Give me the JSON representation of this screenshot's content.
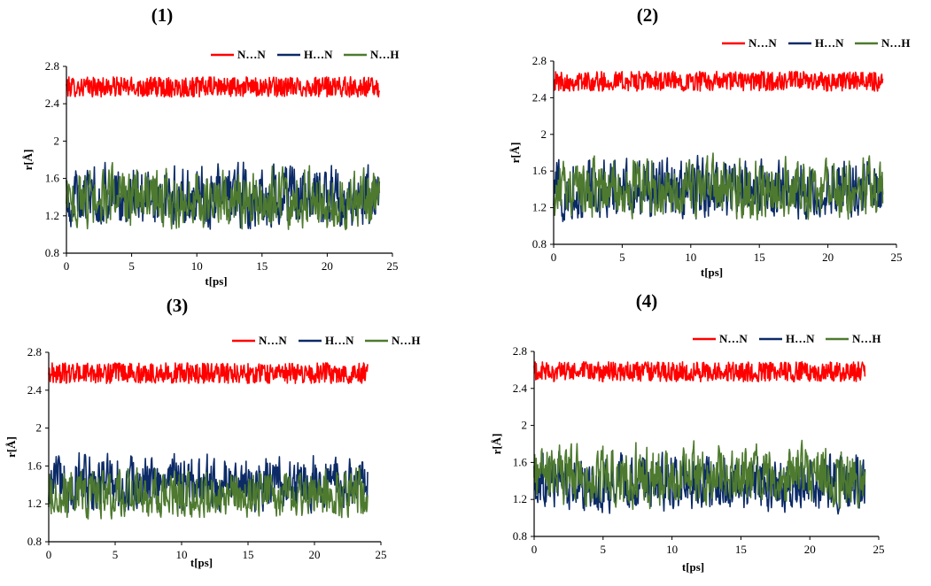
{
  "chart_data": [
    {
      "type": "line",
      "panel_label": "(1)",
      "xlabel": "t[ps]",
      "ylabel": "r[Å]",
      "xlim": [
        0,
        25
      ],
      "ylim": [
        0.8,
        2.8
      ],
      "xticks": [
        "0",
        "5",
        "10",
        "15",
        "20",
        "25"
      ],
      "yticks": [
        "0.8",
        "1.2",
        "1.6",
        "2",
        "2.4",
        "2.8"
      ],
      "legend": [
        "N…N",
        "H…N",
        "N…H"
      ],
      "x_end": 24,
      "series": [
        {
          "name": "N…N",
          "color": "#ff0000",
          "mean": 2.58,
          "amplitude": 0.12,
          "description_values": [
            2.45,
            2.78
          ]
        },
        {
          "name": "H…N",
          "color": "#0b2a66",
          "mean": 1.38,
          "amplitude": 0.36,
          "description_values": [
            1.0,
            1.85
          ]
        },
        {
          "name": "N…H",
          "color": "#4e7a2f",
          "mean": 1.3,
          "amplitude": 0.3,
          "description_values": [
            1.0,
            1.8
          ]
        }
      ]
    },
    {
      "type": "line",
      "panel_label": "(2)",
      "xlabel": "t[ps]",
      "ylabel": "r[Å]",
      "xlim": [
        0,
        25
      ],
      "ylim": [
        0.8,
        2.8
      ],
      "xticks": [
        "0",
        "5",
        "10",
        "15",
        "20",
        "25"
      ],
      "yticks": [
        "0.8",
        "1.2",
        "1.6",
        "2",
        "2.4",
        "2.8"
      ],
      "legend": [
        "N…N",
        "H…N",
        "N…H"
      ],
      "x_end": 24,
      "series": [
        {
          "name": "N…N",
          "color": "#ff0000",
          "mean": 2.58,
          "amplitude": 0.12,
          "description_values": [
            2.45,
            2.78
          ]
        },
        {
          "name": "H…N",
          "color": "#0b2a66",
          "mean": 1.35,
          "amplitude": 0.36,
          "description_values": [
            1.0,
            1.85
          ]
        },
        {
          "name": "N…H",
          "color": "#4e7a2f",
          "mean": 1.33,
          "amplitude": 0.32,
          "description_values": [
            1.0,
            1.85
          ]
        }
      ]
    },
    {
      "type": "line",
      "panel_label": "(3)",
      "xlabel": "t[ps]",
      "ylabel": "r[Å]",
      "xlim": [
        0,
        25
      ],
      "ylim": [
        0.8,
        2.8
      ],
      "xticks": [
        "0",
        "5",
        "10",
        "15",
        "20",
        "25"
      ],
      "yticks": [
        "0.8",
        "1.2",
        "1.6",
        "2",
        "2.4",
        "2.8"
      ],
      "legend": [
        "N…N",
        "H…N",
        "N…H"
      ],
      "x_end": 24,
      "series": [
        {
          "name": "N…N",
          "color": "#ff0000",
          "mean": 2.58,
          "amplitude": 0.12,
          "description_values": [
            2.45,
            2.78
          ]
        },
        {
          "name": "H…N",
          "color": "#0b2a66",
          "mean": 1.48,
          "amplitude": 0.3,
          "description_values": [
            1.05,
            1.82
          ]
        },
        {
          "name": "N…H",
          "color": "#4e7a2f",
          "mean": 1.22,
          "amplitude": 0.22,
          "description_values": [
            1.0,
            1.65
          ]
        }
      ]
    },
    {
      "type": "line",
      "panel_label": "(4)",
      "xlabel": "t[ps]",
      "ylabel": "r[Å]",
      "xlim": [
        0,
        25
      ],
      "ylim": [
        0.8,
        2.8
      ],
      "xticks": [
        "0",
        "5",
        "10",
        "15",
        "20",
        "25"
      ],
      "yticks": [
        "0.8",
        "1.2",
        "1.6",
        "2",
        "2.4",
        "2.8"
      ],
      "legend": [
        "N…N",
        "H…N",
        "N…H"
      ],
      "x_end": 24,
      "series": [
        {
          "name": "N…N",
          "color": "#ff0000",
          "mean": 2.58,
          "amplitude": 0.12,
          "description_values": [
            2.45,
            2.78
          ]
        },
        {
          "name": "H…N",
          "color": "#0b2a66",
          "mean": 1.3,
          "amplitude": 0.32,
          "description_values": [
            1.0,
            1.8
          ]
        },
        {
          "name": "N…H",
          "color": "#4e7a2f",
          "mean": 1.36,
          "amplitude": 0.3,
          "description_values": [
            1.05,
            1.9
          ]
        }
      ]
    }
  ]
}
